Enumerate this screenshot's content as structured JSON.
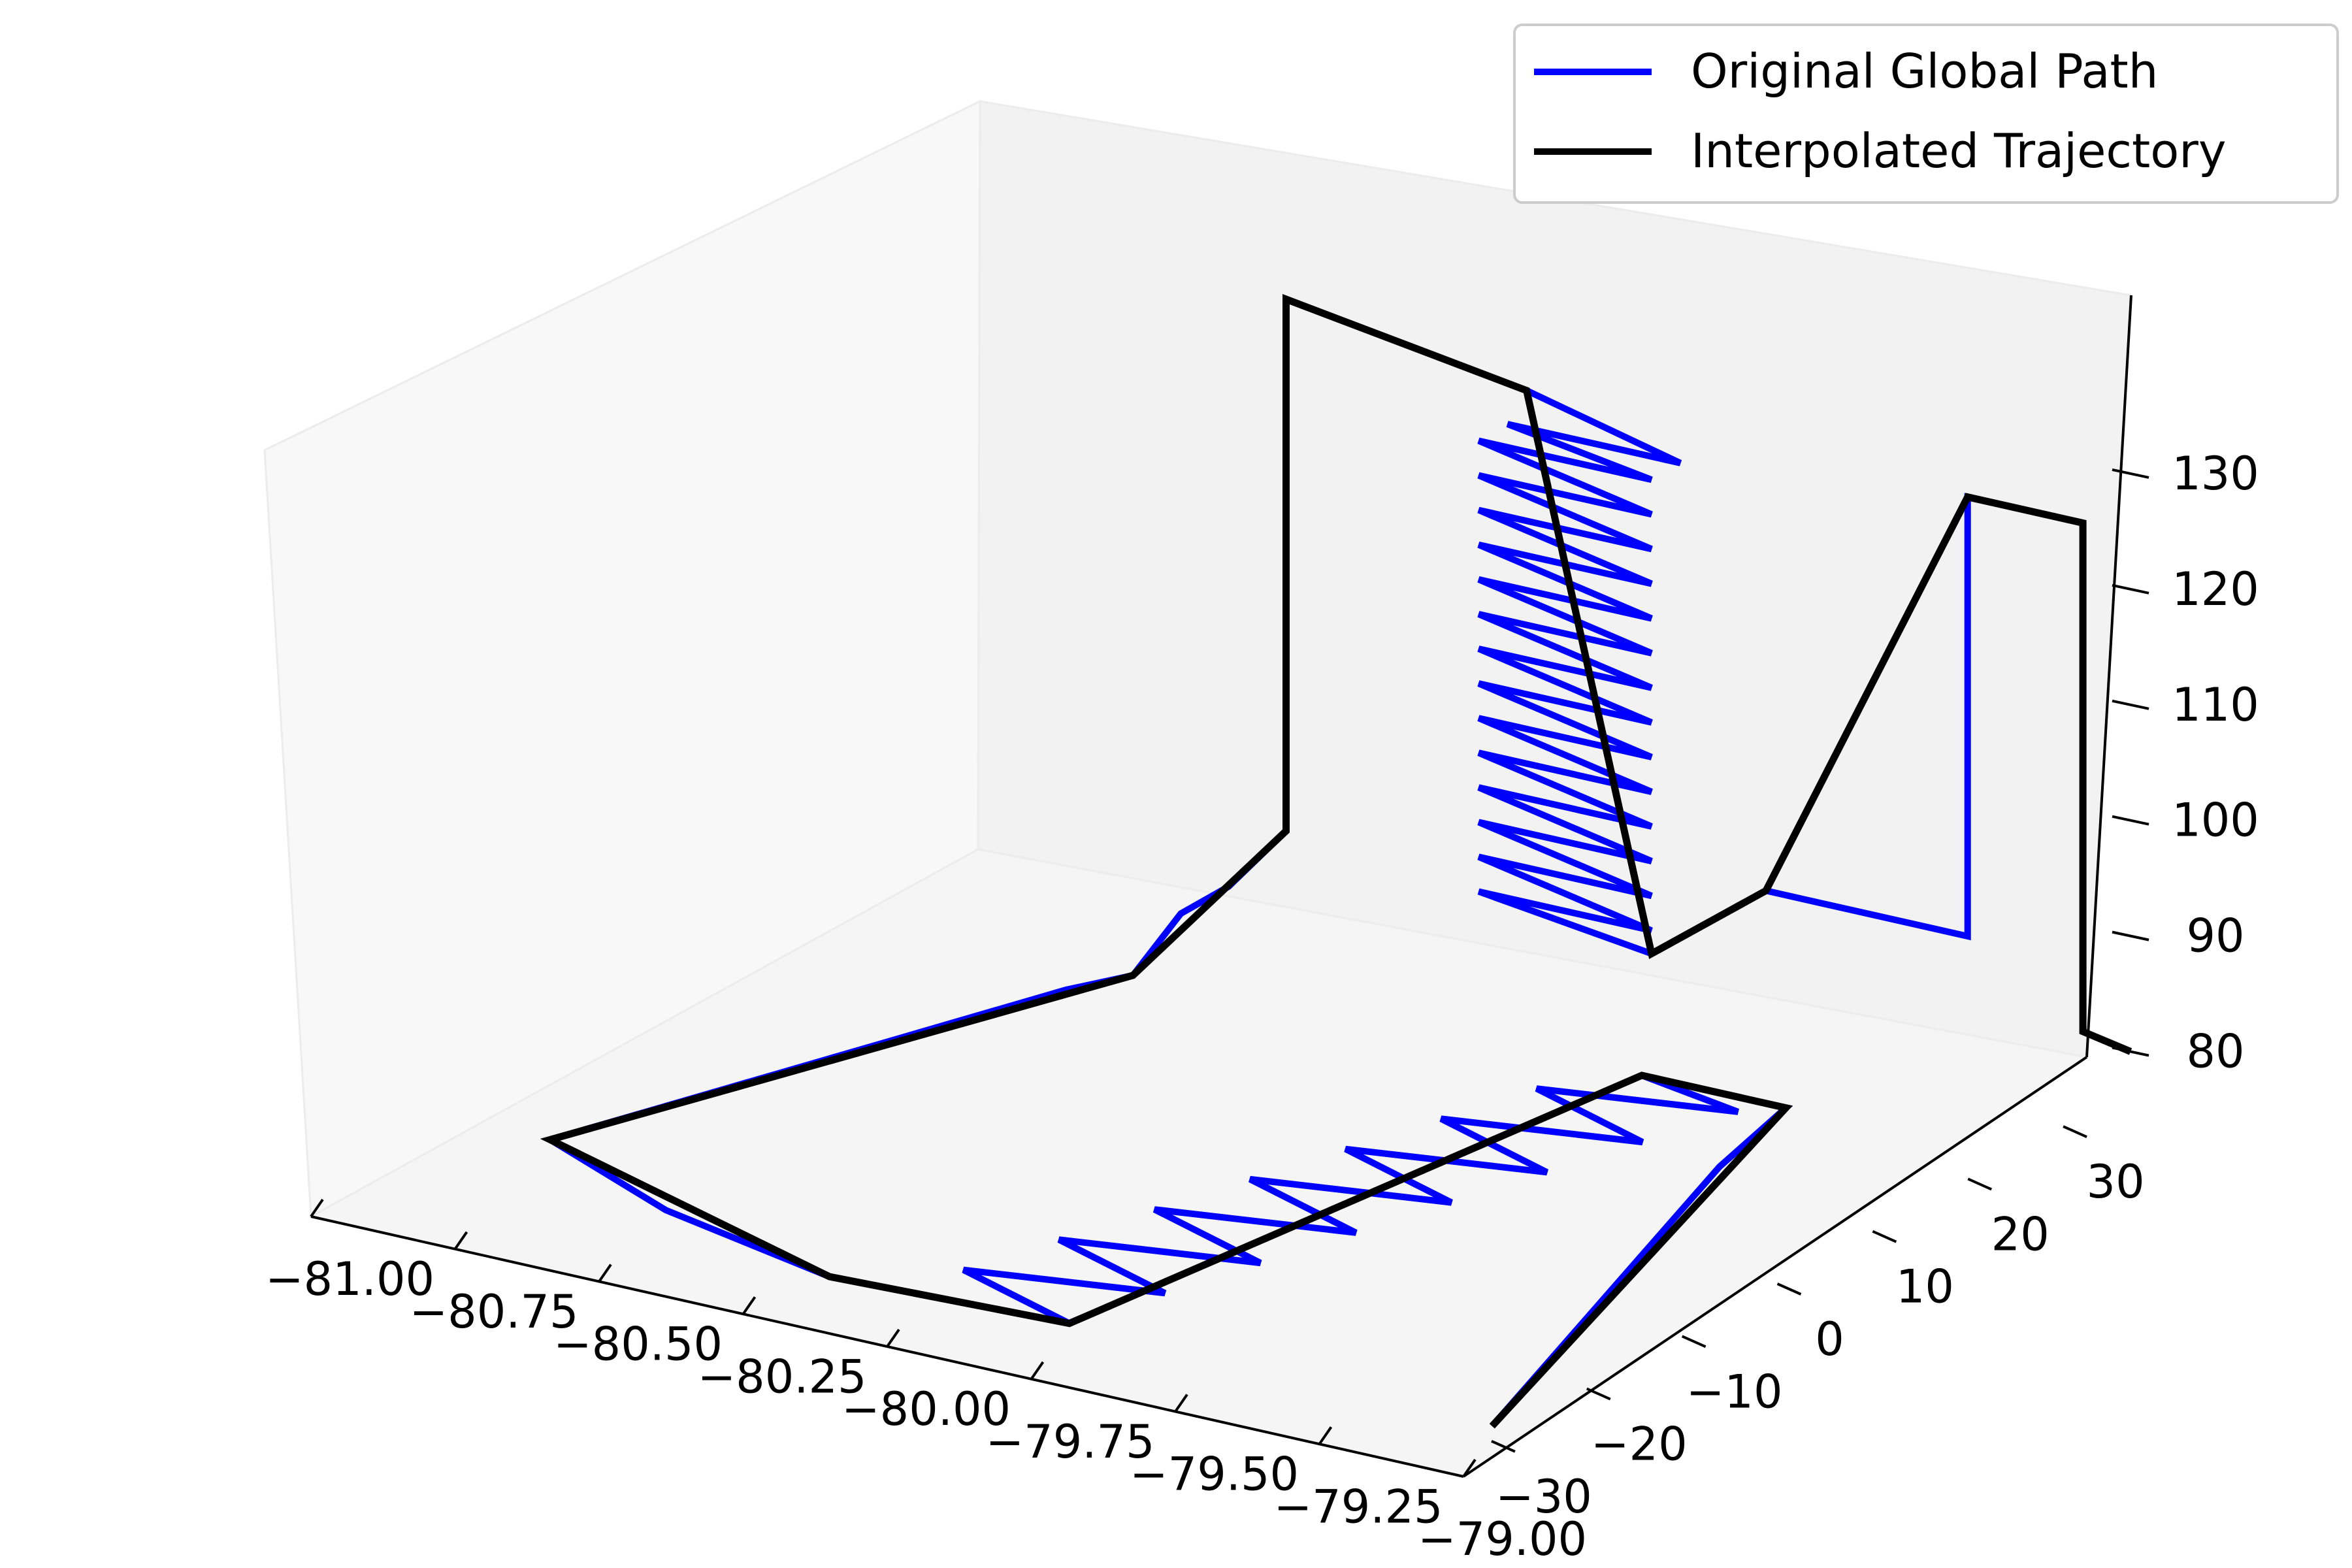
{
  "chart_data": {
    "type": "line",
    "projection": "3d",
    "title": "",
    "xlabel": "",
    "ylabel": "",
    "zlabel": "",
    "grid": false,
    "legend_placement": "top-right",
    "xlim": [
      -81.0,
      -79.0
    ],
    "ylim": [
      -35,
      35
    ],
    "zlim": [
      75,
      140
    ],
    "x_ticks": [
      "−81.00",
      "−80.75",
      "−80.50",
      "−80.25",
      "−80.00",
      "−79.75",
      "−79.50",
      "−79.25",
      "−79.00"
    ],
    "y_ticks": [
      "−30",
      "−20",
      "−10",
      "0",
      "10",
      "20",
      "30"
    ],
    "z_ticks": [
      "80",
      "90",
      "100",
      "110",
      "120",
      "130"
    ],
    "series": [
      {
        "name": "Original Global Path",
        "color": "#0000ff",
        "points": [
          [
            -79.0,
            -32,
            78
          ],
          [
            -79.1,
            -18,
            78
          ],
          [
            -79.2,
            -4,
            78
          ],
          [
            -79.3,
            10,
            78
          ],
          [
            -79.35,
            20,
            78
          ],
          [
            -79.6,
            20,
            78
          ],
          [
            -79.4,
            18,
            78
          ],
          [
            -79.7,
            15,
            78
          ],
          [
            -79.45,
            11,
            78
          ],
          [
            -79.75,
            8,
            78
          ],
          [
            -79.5,
            4,
            78
          ],
          [
            -79.8,
            1,
            78
          ],
          [
            -79.55,
            -3,
            78
          ],
          [
            -79.85,
            -6,
            78
          ],
          [
            -79.6,
            -10,
            78
          ],
          [
            -79.9,
            -13,
            78
          ],
          [
            -79.65,
            -17,
            78
          ],
          [
            -79.95,
            -20,
            78
          ],
          [
            -79.7,
            -24,
            78
          ],
          [
            -80.0,
            -27,
            78
          ],
          [
            -79.75,
            -31,
            78
          ],
          [
            -80.15,
            -32,
            78
          ],
          [
            -80.5,
            -28,
            78
          ],
          [
            -80.8,
            -22,
            78
          ],
          [
            -80.7,
            -10,
            78
          ],
          [
            -80.6,
            2,
            78
          ],
          [
            -80.5,
            14,
            78
          ],
          [
            -80.45,
            18,
            78
          ],
          [
            -80.4,
            20,
            83
          ],
          [
            -80.35,
            22,
            85
          ],
          [
            -80.3,
            25,
            89
          ],
          [
            -80.3,
            25,
            135
          ],
          [
            -80.0,
            22,
            135
          ],
          [
            -79.8,
            20,
            135
          ],
          [
            -79.5,
            18,
            133
          ],
          [
            -79.8,
            18,
            133
          ],
          [
            -79.55,
            18,
            131
          ],
          [
            -79.85,
            18,
            131
          ],
          [
            -79.55,
            18,
            128
          ],
          [
            -79.85,
            18,
            128
          ],
          [
            -79.55,
            18,
            125
          ],
          [
            -79.85,
            18,
            125
          ],
          [
            -79.55,
            18,
            122
          ],
          [
            -79.85,
            18,
            122
          ],
          [
            -79.55,
            18,
            119
          ],
          [
            -79.85,
            18,
            119
          ],
          [
            -79.55,
            18,
            116
          ],
          [
            -79.85,
            18,
            116
          ],
          [
            -79.55,
            18,
            113
          ],
          [
            -79.85,
            18,
            113
          ],
          [
            -79.55,
            18,
            110
          ],
          [
            -79.85,
            18,
            110
          ],
          [
            -79.55,
            18,
            107
          ],
          [
            -79.85,
            18,
            107
          ],
          [
            -79.55,
            18,
            104
          ],
          [
            -79.85,
            18,
            104
          ],
          [
            -79.55,
            18,
            101
          ],
          [
            -79.85,
            18,
            101
          ],
          [
            -79.55,
            18,
            98
          ],
          [
            -79.85,
            18,
            98
          ],
          [
            -79.55,
            18,
            95
          ],
          [
            -79.85,
            18,
            95
          ],
          [
            -79.55,
            18,
            92
          ],
          [
            -79.85,
            18,
            92
          ],
          [
            -79.55,
            18,
            90
          ],
          [
            -79.55,
            24,
            90
          ],
          [
            -79.55,
            30,
            90
          ],
          [
            -79.2,
            30,
            90
          ],
          [
            -79.2,
            30,
            128
          ],
          [
            -79.0,
            30,
            128
          ],
          [
            -79.0,
            30,
            84
          ],
          [
            -79.0,
            35,
            80
          ]
        ]
      },
      {
        "name": "Interpolated Trajectory",
        "color": "#000000",
        "points": [
          [
            -79.0,
            -32,
            78
          ],
          [
            -79.35,
            20,
            78
          ],
          [
            -79.6,
            20,
            78
          ],
          [
            -79.75,
            -31,
            78
          ],
          [
            -80.15,
            -32,
            78
          ],
          [
            -80.8,
            -22,
            78
          ],
          [
            -80.45,
            18,
            78
          ],
          [
            -80.3,
            25,
            89
          ],
          [
            -80.3,
            25,
            135
          ],
          [
            -79.8,
            20,
            135
          ],
          [
            -79.55,
            18,
            90
          ],
          [
            -79.55,
            30,
            90
          ],
          [
            -79.2,
            30,
            128
          ],
          [
            -79.0,
            30,
            128
          ],
          [
            -79.0,
            30,
            84
          ],
          [
            -79.0,
            35,
            80
          ]
        ]
      }
    ]
  }
}
